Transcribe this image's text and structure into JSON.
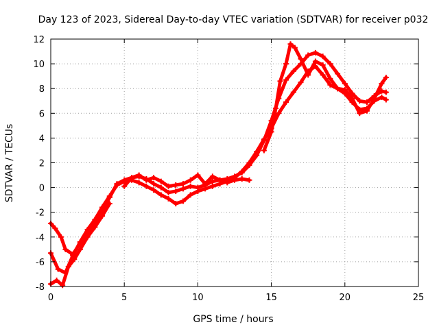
{
  "chart_data": {
    "type": "scatter",
    "title": "Day 123 of 2023, Sidereal Day-to-day VTEC variation (SDTVAR) for receiver p032",
    "xlabel": "GPS time / hours",
    "ylabel": "SDTVAR / TECUs",
    "xlim": [
      0,
      25
    ],
    "ylim": [
      -8,
      12
    ],
    "xticks": [
      "0",
      "5",
      "10",
      "15",
      "20",
      "25"
    ],
    "yticks": [
      "-8",
      "-6",
      "-4",
      "-2",
      "0",
      "2",
      "4",
      "6",
      "8",
      "10",
      "12"
    ],
    "grid": true,
    "series": [
      {
        "color": "#ff0000",
        "x": [
          0.0,
          0.3,
          0.7,
          1.0,
          1.5,
          2.0,
          2.5,
          3.0,
          3.5,
          4.0,
          4.5,
          5.0,
          5.5,
          6.0,
          6.5,
          7.0,
          7.5,
          8.0,
          8.5,
          9.0,
          9.5,
          10.0,
          10.5,
          11.0,
          11.5,
          12.0,
          12.5,
          13.0,
          13.5,
          14.0,
          14.5,
          15.0,
          15.5,
          16.0,
          16.5,
          17.0,
          17.5,
          18.0,
          18.5,
          19.0,
          19.5,
          20.0,
          20.5,
          21.0,
          21.5,
          22.0,
          22.5,
          22.8
        ],
        "y": [
          -2.9,
          -3.3,
          -4.0,
          -5.0,
          -5.4,
          -4.5,
          -3.6,
          -2.8,
          -1.9,
          -0.8,
          0.3,
          0.6,
          0.8,
          0.9,
          0.7,
          0.3,
          0.0,
          -0.4,
          -0.3,
          -0.1,
          0.1,
          0.0,
          0.2,
          0.5,
          0.6,
          0.7,
          0.9,
          1.2,
          1.8,
          2.6,
          3.8,
          5.4,
          7.2,
          8.7,
          9.4,
          10.0,
          10.7,
          10.9,
          10.6,
          10.0,
          9.2,
          8.4,
          7.6,
          7.0,
          6.9,
          7.4,
          7.8,
          7.7
        ]
      },
      {
        "color": "#ff0000",
        "x": [
          0.0,
          0.5,
          1.0,
          1.5,
          2.0,
          2.5,
          3.0,
          3.5,
          4.0,
          4.5,
          5.0,
          5.5,
          6.0,
          6.5,
          7.0,
          7.5,
          8.0,
          8.5,
          9.0,
          9.5,
          10.0,
          10.5,
          11.0,
          11.5,
          12.0,
          12.5,
          13.0,
          13.5,
          14.0,
          14.5,
          15.0,
          15.5,
          16.0,
          16.5,
          17.0,
          17.5,
          18.0,
          18.5,
          19.0,
          19.5,
          20.0,
          20.5,
          21.0,
          21.5,
          22.0,
          22.5,
          22.8
        ],
        "y": [
          -5.3,
          -6.6,
          -6.9,
          -5.5,
          -4.4,
          -3.4,
          -2.6,
          -1.6,
          -0.7,
          0.2,
          0.5,
          0.6,
          0.4,
          0.1,
          -0.2,
          -0.6,
          -0.9,
          -1.3,
          -1.1,
          -0.6,
          -0.3,
          -0.1,
          0.1,
          0.3,
          0.5,
          0.8,
          1.3,
          2.0,
          2.9,
          3.9,
          4.8,
          6.0,
          6.9,
          7.7,
          8.5,
          9.4,
          9.8,
          9.1,
          8.3,
          8.0,
          7.6,
          6.9,
          6.3,
          6.4,
          7.0,
          7.3,
          7.1
        ]
      },
      {
        "color": "#ff0000",
        "x": [
          0.0,
          0.4,
          0.8,
          1.2,
          1.6,
          2.0,
          2.5,
          3.0,
          3.5,
          4.0
        ],
        "y": [
          -7.8,
          -7.5,
          -7.9,
          -6.4,
          -5.8,
          -5.0,
          -4.0,
          -3.2,
          -2.3,
          -1.3
        ]
      },
      {
        "color": "#ff0000",
        "x": [
          5.0,
          5.5,
          6.0,
          6.5,
          7.0,
          7.5,
          8.0,
          8.5,
          9.0,
          9.5,
          10.0,
          10.5,
          11.0,
          11.5,
          12.0,
          12.5,
          13.0,
          13.5
        ],
        "y": [
          0.1,
          0.8,
          1.0,
          0.6,
          0.8,
          0.5,
          0.1,
          0.2,
          0.3,
          0.6,
          1.0,
          0.3,
          0.9,
          0.6,
          0.4,
          0.6,
          0.7,
          0.6
        ]
      },
      {
        "color": "#ff0000",
        "x": [
          14.5,
          15.0,
          15.3,
          15.6,
          16.0,
          16.3,
          16.6,
          17.0,
          17.5,
          18.0,
          18.5,
          19.0,
          19.5,
          20.0,
          20.5,
          21.0,
          21.5,
          22.0,
          22.5,
          22.8
        ],
        "y": [
          3.0,
          4.5,
          6.4,
          8.6,
          10.0,
          11.6,
          11.3,
          10.4,
          9.1,
          10.2,
          9.9,
          8.8,
          8.0,
          7.9,
          7.2,
          6.0,
          6.2,
          7.2,
          8.4,
          8.9
        ]
      }
    ]
  }
}
